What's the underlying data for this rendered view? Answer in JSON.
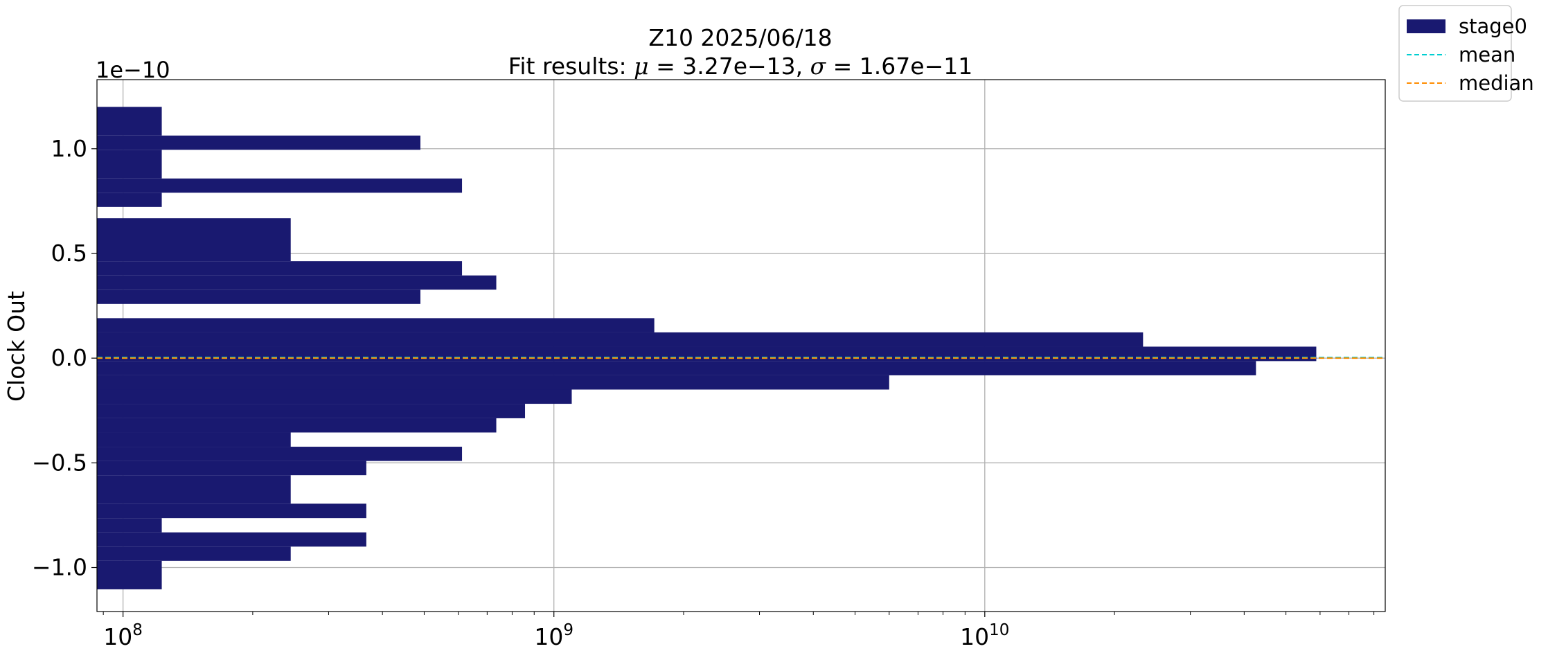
{
  "chart_data": {
    "type": "bar",
    "orientation": "horizontal",
    "title_line1": "Z10 2025/06/18",
    "title_line2_prefix": "Fit results: ",
    "fit": {
      "mu": "3.27e−13",
      "sigma": "1.67e−11"
    },
    "xlabel": "",
    "ylabel": "Clock Out",
    "y_offset_label": "1e−10",
    "xscale": "log",
    "xlim": [
      87000000,
      85000000000
    ],
    "ylim": [
      -1.21,
      1.33
    ],
    "y_scale_factor": 1e-10,
    "grid": true,
    "legend_position": "outside-top-right",
    "x_ticks": [
      {
        "value": 100000000,
        "base": "10",
        "exp": "8"
      },
      {
        "value": 1000000000,
        "base": "10",
        "exp": "9"
      },
      {
        "value": 10000000000,
        "base": "10",
        "exp": "10"
      }
    ],
    "y_ticks": [
      {
        "value": 1.0,
        "label": "1.0"
      },
      {
        "value": 0.5,
        "label": "0.5"
      },
      {
        "value": 0.0,
        "label": "0.0"
      },
      {
        "value": -0.5,
        "label": "−0.5"
      },
      {
        "value": -1.0,
        "label": "−1.0"
      }
    ],
    "series": [
      {
        "name": "stage0",
        "color": "#191970",
        "bins": [
          {
            "y0": 1.063,
            "y1": 1.2,
            "value": 123000000
          },
          {
            "y0": 0.995,
            "y1": 1.063,
            "value": 490000000
          },
          {
            "y0": 0.858,
            "y1": 0.995,
            "value": 123000000
          },
          {
            "y0": 0.79,
            "y1": 0.858,
            "value": 612000000
          },
          {
            "y0": 0.722,
            "y1": 0.79,
            "value": 123000000
          },
          {
            "y0": 0.463,
            "y1": 0.668,
            "value": 245000000
          },
          {
            "y0": 0.395,
            "y1": 0.463,
            "value": 612000000
          },
          {
            "y0": 0.327,
            "y1": 0.395,
            "value": 735000000
          },
          {
            "y0": 0.259,
            "y1": 0.327,
            "value": 490000000
          },
          {
            "y0": 0.123,
            "y1": 0.191,
            "value": 1710000000
          },
          {
            "y0": 0.055,
            "y1": 0.123,
            "value": 23300000000
          },
          {
            "y0": -0.014,
            "y1": 0.055,
            "value": 58800000000
          },
          {
            "y0": -0.082,
            "y1": -0.014,
            "value": 42600000000
          },
          {
            "y0": -0.15,
            "y1": -0.082,
            "value": 6000000000
          },
          {
            "y0": -0.218,
            "y1": -0.15,
            "value": 1100000000
          },
          {
            "y0": -0.287,
            "y1": -0.218,
            "value": 857000000
          },
          {
            "y0": -0.355,
            "y1": -0.287,
            "value": 735000000
          },
          {
            "y0": -0.423,
            "y1": -0.355,
            "value": 245000000
          },
          {
            "y0": -0.491,
            "y1": -0.423,
            "value": 612000000
          },
          {
            "y0": -0.559,
            "y1": -0.491,
            "value": 367000000
          },
          {
            "y0": -0.695,
            "y1": -0.559,
            "value": 245000000
          },
          {
            "y0": -0.764,
            "y1": -0.695,
            "value": 367000000
          },
          {
            "y0": -0.832,
            "y1": -0.764,
            "value": 123000000
          },
          {
            "y0": -0.9,
            "y1": -0.832,
            "value": 367000000
          },
          {
            "y0": -0.968,
            "y1": -0.9,
            "value": 245000000
          },
          {
            "y0": -1.104,
            "y1": -0.968,
            "value": 123000000
          }
        ]
      }
    ],
    "lines": [
      {
        "name": "mean",
        "y": 0.00327,
        "color": "#00CED1",
        "dash": "dashed"
      },
      {
        "name": "median",
        "y": 0.0,
        "color": "#FF8C00",
        "dash": "dashed"
      }
    ],
    "legend": [
      {
        "label": "stage0",
        "kind": "patch",
        "color": "#191970"
      },
      {
        "label": "mean",
        "kind": "line",
        "color": "#00CED1"
      },
      {
        "label": "median",
        "kind": "line",
        "color": "#FF8C00"
      }
    ]
  }
}
